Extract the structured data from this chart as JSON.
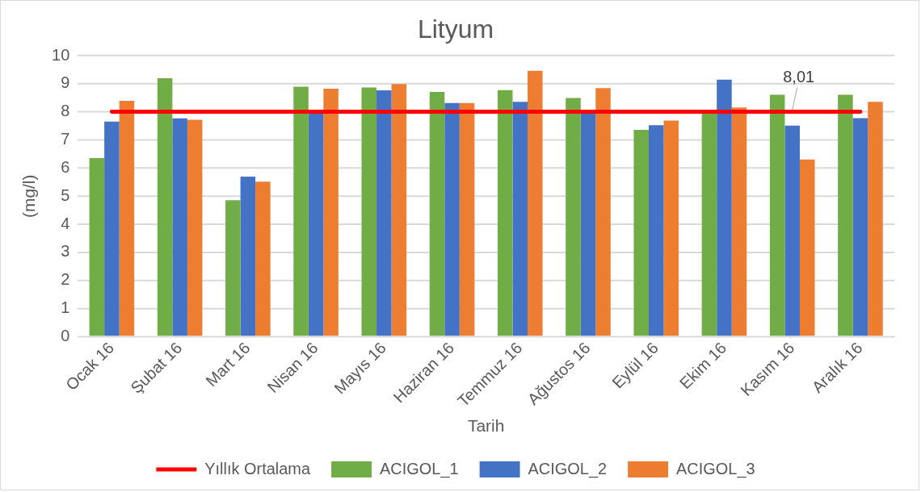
{
  "chart_data": {
    "type": "bar",
    "title": "Lityum",
    "xlabel": "Tarih",
    "ylabel": "(mg/l)",
    "categories": [
      "Ocak 16",
      "Şubat 16",
      "Mart 16",
      "Nisan 16",
      "Mayıs 16",
      "Haziran 16",
      "Temmuz 16",
      "Ağustos 16",
      "Eylül 16",
      "Ekim 16",
      "Kasım 16",
      "Aralık 16"
    ],
    "series": [
      {
        "name": "ACIGOL_1",
        "color": "#70ad47",
        "values": [
          6.36,
          9.2,
          4.86,
          8.9,
          8.87,
          8.71,
          8.78,
          8.5,
          7.36,
          7.94,
          8.61,
          8.61
        ]
      },
      {
        "name": "ACIGOL_2",
        "color": "#4472c4",
        "values": [
          7.66,
          7.77,
          5.7,
          8.0,
          8.77,
          8.32,
          8.36,
          8.0,
          7.53,
          9.15,
          7.51,
          7.78
        ]
      },
      {
        "name": "ACIGOL_3",
        "color": "#ed7d31",
        "values": [
          8.4,
          7.72,
          5.52,
          8.83,
          8.99,
          8.32,
          9.47,
          8.85,
          7.69,
          8.16,
          6.31,
          8.36
        ]
      },
      {
        "name": "Yıllık Ortalama",
        "type": "line",
        "color": "#ff0000",
        "values": [
          8.01,
          8.01,
          8.01,
          8.01,
          8.01,
          8.01,
          8.01,
          8.01,
          8.01,
          8.01,
          8.01,
          8.01
        ],
        "value_labels": [
          null,
          null,
          null,
          null,
          null,
          null,
          null,
          null,
          null,
          null,
          "8,01",
          null
        ]
      }
    ],
    "ylim": [
      0,
      10
    ],
    "yticks": [
      0,
      1,
      2,
      3,
      4,
      5,
      6,
      7,
      8,
      9,
      10
    ],
    "grid": "y",
    "legend": "bottom",
    "marker": "none"
  }
}
